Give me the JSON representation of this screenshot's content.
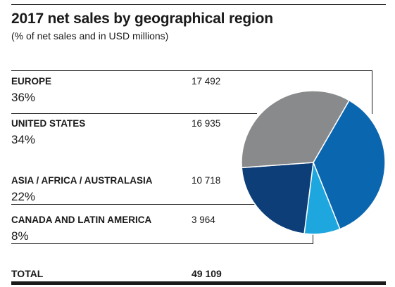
{
  "title": "2017 net sales by geographical region",
  "subtitle": "(% of net sales and in USD millions)",
  "chart_data": {
    "type": "pie",
    "slices": [
      {
        "name": "EUROPE",
        "percent_label": "36%",
        "value": 17492,
        "value_label": "17 492",
        "color": "#0b66b0"
      },
      {
        "name": "UNITED STATES",
        "percent_label": "34%",
        "value": 16935,
        "value_label": "16 935",
        "color": "#898a8c"
      },
      {
        "name": "ASIA / AFRICA / AUSTRALASIA",
        "percent_label": "22%",
        "value": 10718,
        "value_label": "10 718",
        "color": "#0d3e78"
      },
      {
        "name": "CANADA AND LATIN AMERICA",
        "percent_label": "8%",
        "value": 3964,
        "value_label": "3 964",
        "color": "#1ea6df"
      }
    ],
    "total_label": "TOTAL",
    "total_value": "49 109"
  }
}
